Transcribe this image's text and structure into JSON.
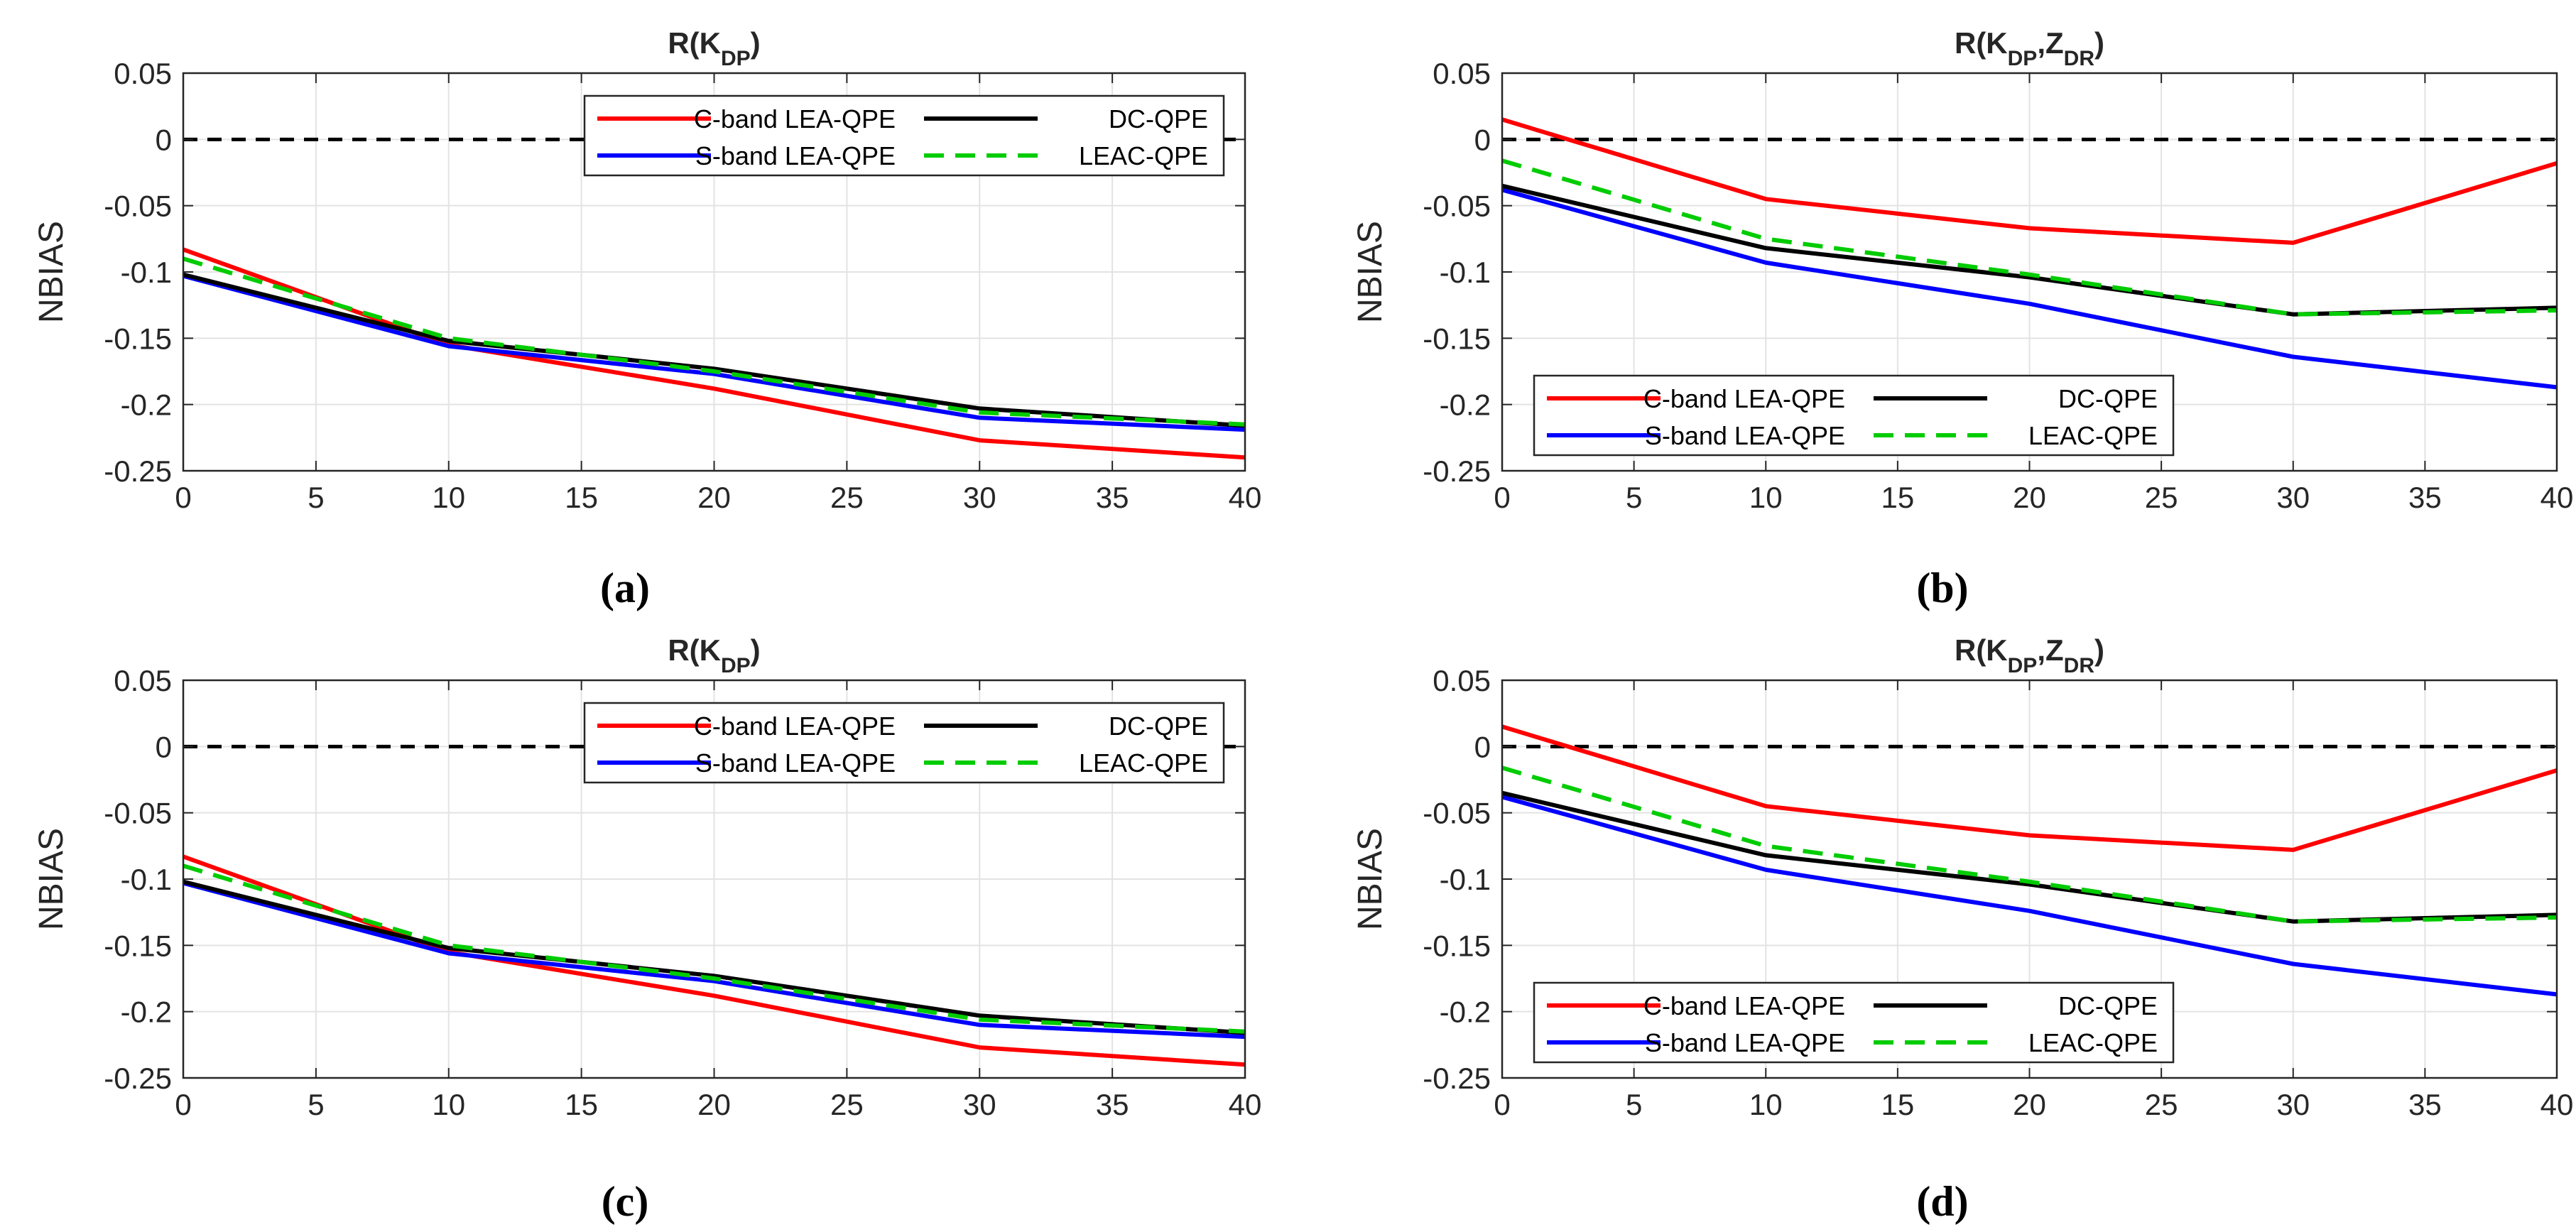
{
  "chart_data": [
    {
      "type": "line",
      "panel": "(a)",
      "title": {
        "base": "R(K",
        "sub1": "DP",
        "mid": "",
        "sub2": "",
        "end": ")"
      },
      "xlabel": "",
      "ylabel": "NBIAS",
      "xlim": [
        0,
        40
      ],
      "ylim": [
        -0.25,
        0.05
      ],
      "xticks": [
        "0",
        "5",
        "10",
        "15",
        "20",
        "25",
        "30",
        "35",
        "40"
      ],
      "yticks": [
        "0.05",
        "0",
        "-0.05",
        "-0.1",
        "-0.15",
        "-0.2",
        "-0.25"
      ],
      "grid": true,
      "legend_position": "top-right",
      "x": [
        0,
        10,
        20,
        30,
        40
      ],
      "series": [
        {
          "name": "C-band LEA-QPE",
          "color": "#ff0000",
          "dash": "solid",
          "values": [
            -0.083,
            -0.155,
            -0.188,
            -0.227,
            -0.24
          ]
        },
        {
          "name": "S-band LEA-QPE",
          "color": "#0000ff",
          "dash": "solid",
          "values": [
            -0.103,
            -0.156,
            -0.177,
            -0.21,
            -0.219
          ]
        },
        {
          "name": "DC-QPE",
          "color": "#000000",
          "dash": "solid",
          "values": [
            -0.102,
            -0.152,
            -0.173,
            -0.203,
            -0.216
          ]
        },
        {
          "name": "LEAC-QPE",
          "color": "#00cc00",
          "dash": "dashed",
          "values": [
            -0.09,
            -0.15,
            -0.175,
            -0.206,
            -0.215
          ]
        }
      ],
      "reference_line": {
        "y": 0,
        "color": "#000000",
        "dash": "dashed"
      }
    },
    {
      "type": "line",
      "panel": "(b)",
      "title": {
        "base": "R(K",
        "sub1": "DP",
        "mid": ",Z",
        "sub2": "DR",
        "end": ")"
      },
      "xlabel": "",
      "ylabel": "NBIAS",
      "xlim": [
        0,
        40
      ],
      "ylim": [
        -0.25,
        0.05
      ],
      "xticks": [
        "0",
        "5",
        "10",
        "15",
        "20",
        "25",
        "30",
        "35",
        "40"
      ],
      "yticks": [
        "0.05",
        "0",
        "-0.05",
        "-0.1",
        "-0.15",
        "-0.2",
        "-0.25"
      ],
      "grid": true,
      "legend_position": "bottom-left",
      "x": [
        0,
        10,
        20,
        30,
        40
      ],
      "series": [
        {
          "name": "C-band LEA-QPE",
          "color": "#ff0000",
          "dash": "solid",
          "values": [
            0.015,
            -0.045,
            -0.067,
            -0.078,
            -0.018
          ]
        },
        {
          "name": "S-band LEA-QPE",
          "color": "#0000ff",
          "dash": "solid",
          "values": [
            -0.038,
            -0.093,
            -0.124,
            -0.164,
            -0.187
          ]
        },
        {
          "name": "DC-QPE",
          "color": "#000000",
          "dash": "solid",
          "values": [
            -0.035,
            -0.082,
            -0.104,
            -0.132,
            -0.127
          ]
        },
        {
          "name": "LEAC-QPE",
          "color": "#00cc00",
          "dash": "dashed",
          "values": [
            -0.016,
            -0.075,
            -0.102,
            -0.132,
            -0.129
          ]
        }
      ],
      "reference_line": {
        "y": 0,
        "color": "#000000",
        "dash": "dashed"
      }
    },
    {
      "type": "line",
      "panel": "(c)",
      "title": {
        "base": "R(K",
        "sub1": "DP",
        "mid": "",
        "sub2": "",
        "end": ")"
      },
      "xlabel": "",
      "ylabel": "NBIAS",
      "xlim": [
        0,
        40
      ],
      "ylim": [
        -0.25,
        0.05
      ],
      "xticks": [
        "0",
        "5",
        "10",
        "15",
        "20",
        "25",
        "30",
        "35",
        "40"
      ],
      "yticks": [
        "0.05",
        "0",
        "-0.05",
        "-0.1",
        "-0.15",
        "-0.2",
        "-0.25"
      ],
      "grid": true,
      "legend_position": "top-right",
      "x": [
        0,
        10,
        20,
        30,
        40
      ],
      "series": [
        {
          "name": "C-band LEA-QPE",
          "color": "#ff0000",
          "dash": "solid",
          "values": [
            -0.083,
            -0.155,
            -0.188,
            -0.227,
            -0.24
          ]
        },
        {
          "name": "S-band LEA-QPE",
          "color": "#0000ff",
          "dash": "solid",
          "values": [
            -0.103,
            -0.156,
            -0.177,
            -0.21,
            -0.219
          ]
        },
        {
          "name": "DC-QPE",
          "color": "#000000",
          "dash": "solid",
          "values": [
            -0.102,
            -0.152,
            -0.173,
            -0.203,
            -0.216
          ]
        },
        {
          "name": "LEAC-QPE",
          "color": "#00cc00",
          "dash": "dashed",
          "values": [
            -0.09,
            -0.15,
            -0.175,
            -0.206,
            -0.215
          ]
        }
      ],
      "reference_line": {
        "y": 0,
        "color": "#000000",
        "dash": "dashed"
      }
    },
    {
      "type": "line",
      "panel": "(d)",
      "title": {
        "base": "R(K",
        "sub1": "DP",
        "mid": ",Z",
        "sub2": "DR",
        "end": ")"
      },
      "xlabel": "",
      "ylabel": "NBIAS",
      "xlim": [
        0,
        40
      ],
      "ylim": [
        -0.25,
        0.05
      ],
      "xticks": [
        "0",
        "5",
        "10",
        "15",
        "20",
        "25",
        "30",
        "35",
        "40"
      ],
      "yticks": [
        "0.05",
        "0",
        "-0.05",
        "-0.1",
        "-0.15",
        "-0.2",
        "-0.25"
      ],
      "grid": true,
      "legend_position": "bottom-left",
      "x": [
        0,
        10,
        20,
        30,
        40
      ],
      "series": [
        {
          "name": "C-band LEA-QPE",
          "color": "#ff0000",
          "dash": "solid",
          "values": [
            0.015,
            -0.045,
            -0.067,
            -0.078,
            -0.018
          ]
        },
        {
          "name": "S-band LEA-QPE",
          "color": "#0000ff",
          "dash": "solid",
          "values": [
            -0.038,
            -0.093,
            -0.124,
            -0.164,
            -0.187
          ]
        },
        {
          "name": "DC-QPE",
          "color": "#000000",
          "dash": "solid",
          "values": [
            -0.035,
            -0.082,
            -0.104,
            -0.132,
            -0.127
          ]
        },
        {
          "name": "LEAC-QPE",
          "color": "#00cc00",
          "dash": "dashed",
          "values": [
            -0.016,
            -0.075,
            -0.102,
            -0.132,
            -0.129
          ]
        }
      ],
      "reference_line": {
        "y": 0,
        "color": "#000000",
        "dash": "dashed"
      }
    }
  ]
}
